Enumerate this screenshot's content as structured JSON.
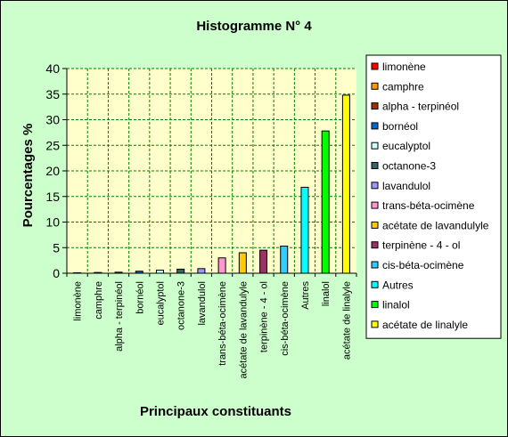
{
  "chart_data": {
    "type": "bar",
    "title": "Histogramme N° 4",
    "xlabel": "Principaux constituants",
    "ylabel": "Pourcentages %",
    "ylim": [
      0,
      40
    ],
    "yticks": [
      0,
      5,
      10,
      15,
      20,
      25,
      30,
      35,
      40
    ],
    "grid": true,
    "legend_position": "right",
    "plot_background": "#ffffcc",
    "page_background": "#ccffcc",
    "categories": [
      "limonène",
      "camphre",
      "alpha - terpinéol",
      "bornéol",
      "eucalyptol",
      "octanone-3",
      "lavandulol",
      "trans-béta-ocimène",
      "acétate de lavandulyle",
      "terpinène - 4 - ol",
      "cis-béta-ocimène",
      "Autres",
      "linalol",
      "acétate de linalyle"
    ],
    "values": [
      0.1,
      0.15,
      0.2,
      0.4,
      0.6,
      0.8,
      0.9,
      3.0,
      4.0,
      4.5,
      5.3,
      16.8,
      27.8,
      34.8
    ],
    "colors": [
      "#ff0000",
      "#ff9900",
      "#993300",
      "#0066cc",
      "#ccffff",
      "#336666",
      "#9999ff",
      "#ff99cc",
      "#ffcc00",
      "#993366",
      "#33ccff",
      "#00ffff",
      "#00ff00",
      "#ffff00"
    ]
  }
}
